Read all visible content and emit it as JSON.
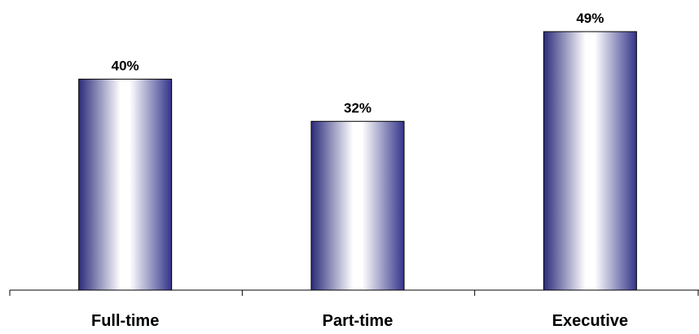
{
  "chart_data": {
    "type": "bar",
    "categories": [
      "Full-time",
      "Part-time",
      "Executive"
    ],
    "values": [
      40,
      32,
      49
    ],
    "data_labels": [
      "40%",
      "32%",
      "49%"
    ],
    "title": "",
    "xlabel": "",
    "ylabel": "",
    "ylim": [
      0,
      55
    ],
    "grid": false,
    "legend": "none",
    "colors": {
      "bar_edge": "#2b2b7a",
      "bar_mid": "#ffffff",
      "bar_dark": "#34348a",
      "axis": "#000000",
      "text": "#000000"
    }
  }
}
